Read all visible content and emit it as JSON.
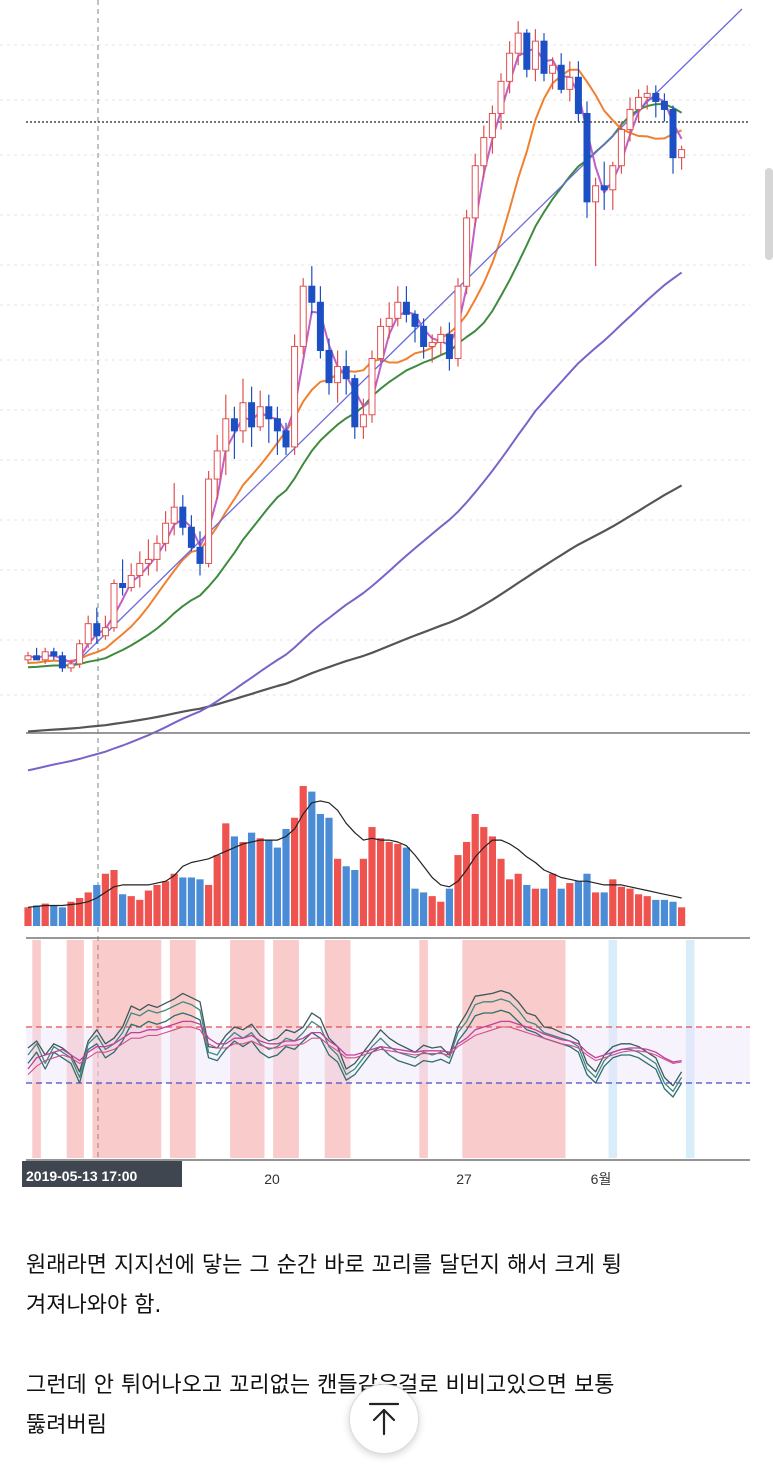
{
  "chart_data": {
    "type": "candlestick",
    "price_panel": {
      "candles": [
        [
          100,
          102,
          99,
          101
        ],
        [
          101,
          103,
          100,
          100
        ],
        [
          100,
          103,
          99,
          102
        ],
        [
          102,
          103,
          100,
          101
        ],
        [
          101,
          102,
          97,
          98
        ],
        [
          98,
          100,
          97,
          99
        ],
        [
          99,
          105,
          98,
          104
        ],
        [
          104,
          111,
          103,
          109
        ],
        [
          109,
          113,
          104,
          106
        ],
        [
          106,
          111,
          105,
          108
        ],
        [
          108,
          120,
          107,
          119
        ],
        [
          119,
          125,
          116,
          118
        ],
        [
          118,
          124,
          117,
          121
        ],
        [
          121,
          127,
          118,
          124
        ],
        [
          124,
          130,
          121,
          125
        ],
        [
          125,
          131,
          122,
          129
        ],
        [
          129,
          137,
          127,
          134
        ],
        [
          134,
          144,
          131,
          138
        ],
        [
          138,
          141,
          131,
          133
        ],
        [
          133,
          136,
          127,
          128
        ],
        [
          128,
          132,
          121,
          124
        ],
        [
          124,
          147,
          123,
          145
        ],
        [
          145,
          156,
          140,
          152
        ],
        [
          152,
          166,
          146,
          160
        ],
        [
          160,
          163,
          150,
          157
        ],
        [
          157,
          170,
          154,
          164
        ],
        [
          164,
          168,
          153,
          158
        ],
        [
          158,
          167,
          157,
          163
        ],
        [
          163,
          166,
          154,
          160
        ],
        [
          160,
          163,
          151,
          157
        ],
        [
          157,
          159,
          151,
          153
        ],
        [
          153,
          181,
          151,
          178
        ],
        [
          178,
          195,
          176,
          193
        ],
        [
          193,
          198,
          186,
          189
        ],
        [
          189,
          193,
          175,
          177
        ],
        [
          177,
          180,
          166,
          169
        ],
        [
          169,
          177,
          164,
          173
        ],
        [
          173,
          177,
          166,
          170
        ],
        [
          170,
          171,
          155,
          158
        ],
        [
          158,
          165,
          155,
          161
        ],
        [
          161,
          177,
          159,
          175
        ],
        [
          175,
          185,
          174,
          183
        ],
        [
          183,
          189,
          180,
          185
        ],
        [
          185,
          193,
          183,
          189
        ],
        [
          189,
          193,
          184,
          186
        ],
        [
          186,
          187,
          179,
          183
        ],
        [
          183,
          185,
          175,
          178
        ],
        [
          178,
          181,
          174,
          179
        ],
        [
          179,
          183,
          176,
          181
        ],
        [
          181,
          184,
          172,
          175
        ],
        [
          175,
          195,
          173,
          193
        ],
        [
          193,
          212,
          191,
          210
        ],
        [
          210,
          226,
          208,
          223
        ],
        [
          223,
          233,
          220,
          230
        ],
        [
          230,
          238,
          226,
          236
        ],
        [
          236,
          246,
          232,
          244
        ],
        [
          244,
          254,
          241,
          251
        ],
        [
          251,
          259,
          248,
          256
        ],
        [
          256,
          257,
          245,
          247
        ],
        [
          247,
          257,
          244,
          254
        ],
        [
          254,
          256,
          244,
          246
        ],
        [
          246,
          250,
          242,
          248
        ],
        [
          248,
          251,
          241,
          242
        ],
        [
          242,
          249,
          239,
          245
        ],
        [
          245,
          249,
          234,
          236
        ],
        [
          236,
          239,
          210,
          214
        ],
        [
          214,
          220,
          198,
          218
        ],
        [
          218,
          224,
          212,
          217
        ],
        [
          217,
          224,
          212,
          223
        ],
        [
          223,
          234,
          221,
          232
        ],
        [
          232,
          240,
          229,
          237
        ],
        [
          237,
          242,
          234,
          240
        ],
        [
          240,
          243,
          237,
          241
        ],
        [
          241,
          243,
          235,
          239
        ],
        [
          239,
          241,
          234,
          237
        ],
        [
          237,
          238,
          221,
          225
        ],
        [
          225,
          228,
          222,
          227
        ]
      ],
      "highlight": 65,
      "current_price": 226
    },
    "volume_panel": {
      "volumes": [
        10,
        11,
        12,
        11,
        10,
        13,
        15,
        18,
        22,
        28,
        30,
        17,
        16,
        14,
        19,
        22,
        24,
        28,
        26,
        26,
        25,
        22,
        38,
        55,
        48,
        45,
        50,
        47,
        46,
        42,
        52,
        58,
        75,
        72,
        60,
        58,
        36,
        32,
        30,
        36,
        53,
        47,
        45,
        44,
        42,
        20,
        18,
        16,
        13,
        20,
        38,
        45,
        60,
        53,
        48,
        36,
        25,
        28,
        22,
        20,
        20,
        28,
        20,
        23,
        24,
        28,
        18,
        18,
        25,
        21,
        20,
        17,
        16,
        14,
        14,
        13,
        10
      ],
      "ma_line": [
        10,
        10.5,
        11,
        11,
        11,
        11.5,
        12,
        13,
        15,
        18,
        21,
        22,
        22,
        22,
        22,
        23,
        24,
        27,
        32,
        34,
        35,
        36,
        38,
        40,
        42,
        44,
        45,
        46,
        46,
        46,
        48,
        52,
        60,
        66,
        67,
        66,
        62,
        55,
        50,
        46,
        47,
        46,
        46,
        45,
        43,
        38,
        32,
        26,
        22,
        21,
        24,
        30,
        37,
        42,
        46,
        46,
        44,
        41,
        37,
        34,
        30,
        28,
        26,
        25,
        24,
        24,
        23,
        22,
        22,
        22,
        21,
        20,
        19,
        18,
        17,
        16,
        15
      ]
    },
    "oscillator_panel": {
      "upper_band": 70,
      "lower_band": 30,
      "line_a": [
        55,
        60,
        50,
        58,
        55,
        50,
        38,
        60,
        68,
        58,
        62,
        70,
        85,
        82,
        86,
        84,
        87,
        90,
        94,
        91,
        88,
        56,
        55,
        64,
        70,
        68,
        72,
        64,
        60,
        62,
        68,
        66,
        70,
        80,
        76,
        62,
        56,
        40,
        44,
        52,
        60,
        68,
        62,
        58,
        55,
        52,
        57,
        55,
        56,
        50,
        70,
        80,
        92,
        93,
        94,
        96,
        94,
        88,
        80,
        78,
        70,
        69,
        66,
        64,
        60,
        44,
        38,
        50,
        56,
        58,
        58,
        56,
        52,
        48,
        34,
        28,
        38
      ],
      "line_b": [
        50,
        58,
        44,
        56,
        52,
        48,
        34,
        58,
        64,
        54,
        58,
        66,
        80,
        78,
        82,
        80,
        82,
        85,
        88,
        86,
        82,
        52,
        50,
        60,
        66,
        62,
        66,
        58,
        54,
        56,
        62,
        60,
        66,
        74,
        70,
        56,
        50,
        36,
        40,
        48,
        56,
        62,
        56,
        52,
        50,
        48,
        52,
        50,
        52,
        48,
        66,
        74,
        86,
        88,
        88,
        90,
        88,
        82,
        74,
        72,
        66,
        64,
        62,
        60,
        56,
        40,
        34,
        46,
        52,
        54,
        54,
        52,
        48,
        44,
        30,
        24,
        34
      ],
      "line_c": [
        44,
        52,
        40,
        52,
        48,
        44,
        30,
        54,
        58,
        48,
        52,
        60,
        72,
        70,
        74,
        72,
        74,
        78,
        80,
        78,
        75,
        48,
        46,
        54,
        60,
        56,
        60,
        52,
        48,
        50,
        56,
        54,
        60,
        66,
        62,
        50,
        45,
        32,
        36,
        44,
        52,
        56,
        50,
        46,
        44,
        42,
        46,
        45,
        47,
        44,
        60,
        68,
        78,
        80,
        80,
        82,
        80,
        74,
        68,
        66,
        62,
        60,
        58,
        56,
        52,
        36,
        30,
        42,
        48,
        50,
        50,
        48,
        44,
        40,
        26,
        20,
        30
      ],
      "line_d": [
        40,
        48,
        50,
        52,
        54,
        50,
        46,
        52,
        56,
        56,
        58,
        62,
        66,
        66,
        68,
        68,
        70,
        72,
        74,
        74,
        72,
        62,
        58,
        58,
        62,
        62,
        64,
        60,
        58,
        58,
        60,
        60,
        62,
        66,
        66,
        60,
        56,
        50,
        50,
        52,
        54,
        56,
        55,
        54,
        53,
        52,
        53,
        53,
        53,
        52,
        58,
        62,
        68,
        70,
        72,
        74,
        74,
        72,
        70,
        68,
        65,
        63,
        61,
        60,
        58,
        52,
        48,
        50,
        52,
        54,
        55,
        55,
        54,
        52,
        48,
        45,
        46
      ],
      "line_e": [
        36,
        42,
        46,
        48,
        50,
        48,
        44,
        48,
        52,
        52,
        54,
        58,
        62,
        62,
        64,
        64,
        66,
        68,
        70,
        70,
        68,
        58,
        55,
        55,
        58,
        58,
        60,
        57,
        55,
        55,
        57,
        57,
        58,
        62,
        62,
        57,
        53,
        48,
        48,
        50,
        52,
        54,
        53,
        52,
        51,
        50,
        51,
        51,
        51,
        50,
        56,
        60,
        64,
        66,
        68,
        70,
        70,
        68,
        66,
        64,
        62,
        60,
        58,
        57,
        55,
        50,
        46,
        48,
        50,
        52,
        53,
        53,
        52,
        50,
        47,
        44,
        45
      ],
      "red_zones": [
        [
          1,
          1
        ],
        [
          5,
          6
        ],
        [
          8,
          15
        ],
        [
          17,
          19
        ],
        [
          24,
          27
        ],
        [
          29,
          31
        ],
        [
          35,
          37
        ],
        [
          46,
          46
        ],
        [
          51,
          62
        ]
      ],
      "blue_zones": [
        [
          68,
          68
        ],
        [
          77,
          77
        ]
      ]
    },
    "x_tick_labels": [
      "2019-05-13   17:00",
      "20",
      "27",
      "6월"
    ]
  },
  "article": {
    "paragraph_1": "원래라면 지지선에 닿는 그 순간 바로 꼬리를 달던지 해서 크게 튕\n겨져나와야 함.",
    "paragraph_2": "그런데 안 튀어나오고 꼬리없는 캔들같은걸로 비비고있으면 보통\n뚫려버림"
  },
  "colors": {
    "up_candle": "#e05050",
    "down_candle": "#1c4fc4",
    "vol_up": "#ef5350",
    "vol_down": "#4a8cd6",
    "ma_fast": "#c060c8",
    "ma_orange": "#f08030",
    "ma_green": "#3f8a3f",
    "ma_purple": "#7b62c9",
    "ma_gray": "#555555",
    "trend_line": "#6a6ae0"
  }
}
